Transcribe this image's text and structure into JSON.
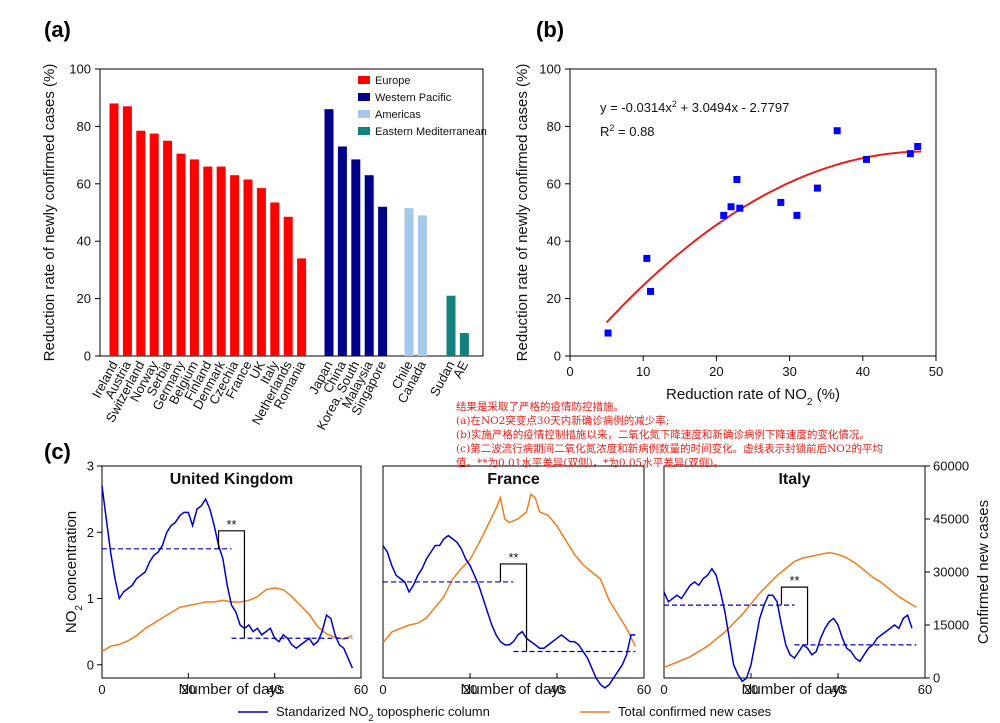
{
  "panel_labels": {
    "a": "(a)",
    "b": "(b)",
    "c": "(c)"
  },
  "annotation": {
    "line1": "结果是采取了严格的疫情防控措施。",
    "line2": "(a)在NO2突变点30天内新确诊病例的减少率;",
    "line3": "(b)实施严格的疫情控制措施以来，二氧化氮下降速度和新确诊病例下降速度的变化情况。",
    "line4": "(c)第二波流行病期间二氧化氮浓度和新病例数量的时间变化。虚线表示封锁前后NO2的平均",
    "line5": "值。**为0.01水平差异(双侧)，*为0.05水平差异(双侧)。"
  },
  "colors": {
    "europe": "#ff0000",
    "western_pacific": "#00008b",
    "americas": "#a6c8ea",
    "eastern_med": "#138080",
    "no2": "#0000cc",
    "cases": "#f07c1c",
    "fit": "#e8201c",
    "scatter": "#0000ff"
  },
  "chart_data": [
    {
      "id": "a",
      "type": "bar",
      "ylabel": "Reduction rate of newly confirmed cases (%)",
      "ylim": [
        0,
        100
      ],
      "yticks": [
        "0",
        "20",
        "40",
        "60",
        "80",
        "100"
      ],
      "legend": [
        "Europe",
        "Western Pacific",
        "Americas",
        "Eastern Mediterranean"
      ],
      "legend_position": "top-right",
      "groups": [
        {
          "name": "Europe",
          "categories": [
            "Ireland",
            "Austria",
            "Switzerland",
            "Norway",
            "Serbia",
            "Germany",
            "Belgium",
            "Finland",
            "Denmark",
            "Czechia",
            "France",
            "UK",
            "Italy",
            "Netherlands",
            "Romania"
          ],
          "values": [
            88,
            87,
            78.5,
            77.5,
            75,
            70.5,
            68.5,
            66,
            66,
            63,
            61.5,
            58.5,
            53.5,
            48.5,
            34
          ]
        },
        {
          "name": "Western Pacific",
          "categories": [
            "Japan",
            "China",
            "Korea, South",
            "Malaysia",
            "Singapore"
          ],
          "values": [
            86,
            73,
            68.5,
            63,
            52
          ]
        },
        {
          "name": "Americas",
          "categories": [
            "Chile",
            "Canada"
          ],
          "values": [
            51.5,
            49
          ]
        },
        {
          "name": "Eastern Mediterranean",
          "categories": [
            "Sudan",
            "AE"
          ],
          "values": [
            21,
            8
          ]
        }
      ]
    },
    {
      "id": "b",
      "type": "scatter",
      "xlabel_main": "Reduction rate of NO",
      "xlabel_sub": "2",
      "xlabel_tail": " (%)",
      "ylabel": "Reduction rate of newly confirmed cases (%)",
      "xlim": [
        0,
        50
      ],
      "ylim": [
        0,
        100
      ],
      "xticks": [
        "0",
        "10",
        "20",
        "30",
        "40",
        "50"
      ],
      "yticks": [
        "0",
        "20",
        "40",
        "60",
        "80",
        "100"
      ],
      "equation": "y = -0.0314x",
      "equation_sup": "2",
      "equation_tail": " + 3.0494x - 2.7797",
      "r2_label": "R",
      "r2_sup": "2",
      "r2_tail": " = 0.88",
      "fit": {
        "a": -0.0314,
        "b": 3.0494,
        "c": -2.7797,
        "xrange": [
          5,
          48
        ]
      },
      "points": [
        {
          "x": 5.2,
          "y": 8
        },
        {
          "x": 10.5,
          "y": 34
        },
        {
          "x": 11,
          "y": 22.5
        },
        {
          "x": 21,
          "y": 49
        },
        {
          "x": 22,
          "y": 52
        },
        {
          "x": 22.8,
          "y": 61.5
        },
        {
          "x": 23.2,
          "y": 51.5
        },
        {
          "x": 28.8,
          "y": 53.5
        },
        {
          "x": 31,
          "y": 49
        },
        {
          "x": 33.8,
          "y": 58.5
        },
        {
          "x": 36.5,
          "y": 78.5
        },
        {
          "x": 40.5,
          "y": 68.5
        },
        {
          "x": 46.5,
          "y": 70.5
        },
        {
          "x": 47.5,
          "y": 73
        }
      ]
    },
    {
      "id": "c",
      "type": "line",
      "ylabel_left_main": "NO",
      "ylabel_left_sub": "2",
      "ylabel_left_tail": " concentration",
      "ylabel_right": "Confirmed new cases",
      "xlabel": "Number of days",
      "xlim": [
        0,
        60
      ],
      "xticks": [
        "0",
        "20",
        "40",
        "60"
      ],
      "ylim_left": [
        -0.2,
        3
      ],
      "yticks_left": [
        "0",
        "1",
        "2",
        "3"
      ],
      "ylim_right": [
        0,
        60000
      ],
      "yticks_right": [
        "0",
        "15000",
        "30000",
        "45000",
        "60000"
      ],
      "legend": [
        "Standarized NO",
        "2",
        " topospheric column",
        "Total confirmed new cases"
      ],
      "subplots": [
        {
          "name": "United Kingdom",
          "significance": "**",
          "means": {
            "before": 1.75,
            "after": 0.4,
            "split": 30
          },
          "no2": {
            "x": [
              0,
              1,
              2,
              3,
              4,
              5,
              6,
              7,
              8,
              9,
              10,
              11,
              12,
              13,
              14,
              15,
              16,
              17,
              18,
              19,
              20,
              21,
              22,
              23,
              24,
              25,
              26,
              27,
              28,
              29,
              30,
              31,
              32,
              33,
              34,
              35,
              36,
              37,
              38,
              39,
              40,
              41,
              42,
              43,
              44,
              45,
              46,
              47,
              48,
              49,
              50,
              51,
              52,
              53,
              54,
              55,
              56,
              57,
              58
            ],
            "values": [
              2.7,
              2.2,
              1.7,
              1.3,
              1.0,
              1.1,
              1.15,
              1.2,
              1.3,
              1.35,
              1.4,
              1.55,
              1.65,
              1.7,
              1.8,
              2.0,
              2.1,
              2.15,
              2.25,
              2.3,
              2.3,
              2.1,
              2.35,
              2.4,
              2.5,
              2.35,
              2.1,
              1.8,
              1.6,
              1.2,
              0.9,
              0.8,
              0.6,
              0.55,
              0.6,
              0.5,
              0.55,
              0.45,
              0.5,
              0.55,
              0.4,
              0.35,
              0.45,
              0.4,
              0.3,
              0.25,
              0.3,
              0.35,
              0.4,
              0.3,
              0.35,
              0.5,
              0.75,
              0.7,
              0.45,
              0.3,
              0.25,
              0.1,
              -0.05
            ]
          },
          "cases": {
            "x": [
              0,
              2,
              4,
              6,
              8,
              10,
              12,
              14,
              16,
              18,
              20,
              22,
              24,
              26,
              28,
              30,
              32,
              34,
              36,
              38,
              40,
              42,
              44,
              46,
              48,
              50,
              52,
              54,
              56,
              58
            ],
            "values": [
              7500,
              9000,
              9500,
              10500,
              12000,
              14000,
              15500,
              17000,
              18500,
              20000,
              20500,
              21000,
              21500,
              21500,
              22000,
              21500,
              21500,
              22000,
              23000,
              25000,
              25500,
              25000,
              23000,
              20500,
              18000,
              14500,
              12500,
              11500,
              11000,
              12000
            ]
          }
        },
        {
          "name": "France",
          "significance": "**",
          "means": {
            "before": 1.25,
            "after": 0.2,
            "split": 30
          },
          "no2": {
            "x": [
              0,
              1,
              2,
              3,
              4,
              5,
              6,
              7,
              8,
              9,
              10,
              11,
              12,
              13,
              14,
              15,
              16,
              17,
              18,
              19,
              20,
              21,
              22,
              23,
              24,
              25,
              26,
              27,
              28,
              29,
              30,
              31,
              32,
              33,
              34,
              35,
              36,
              37,
              38,
              39,
              40,
              41,
              42,
              43,
              44,
              45,
              46,
              47,
              48,
              49,
              50,
              51,
              52,
              53,
              54,
              55,
              56,
              57,
              58
            ],
            "values": [
              1.8,
              1.7,
              1.5,
              1.35,
              1.3,
              1.25,
              1.1,
              1.2,
              1.35,
              1.45,
              1.6,
              1.7,
              1.8,
              1.8,
              1.9,
              1.95,
              1.9,
              1.85,
              1.75,
              1.6,
              1.5,
              1.35,
              1.2,
              1.0,
              0.8,
              0.6,
              0.45,
              0.35,
              0.3,
              0.3,
              0.35,
              0.45,
              0.5,
              0.4,
              0.35,
              0.3,
              0.25,
              0.25,
              0.3,
              0.35,
              0.4,
              0.45,
              0.4,
              0.35,
              0.35,
              0.3,
              0.2,
              0.1,
              -0.05,
              -0.2,
              -0.3,
              -0.35,
              -0.3,
              -0.2,
              -0.1,
              0.0,
              0.15,
              0.45,
              0.45
            ]
          },
          "cases": {
            "x": [
              0,
              2,
              4,
              6,
              8,
              10,
              12,
              14,
              16,
              18,
              20,
              22,
              24,
              26,
              27,
              28,
              29,
              30,
              31,
              32,
              33,
              34,
              35,
              36,
              38,
              40,
              42,
              44,
              46,
              48,
              50,
              52,
              54,
              56,
              58
            ],
            "values": [
              10000,
              13000,
              14000,
              15000,
              15500,
              17000,
              20000,
              23000,
              28000,
              31000,
              33500,
              38000,
              43000,
              48000,
              51000,
              45000,
              44000,
              44500,
              45000,
              46000,
              47000,
              52000,
              51000,
              47000,
              46000,
              43000,
              39000,
              35000,
              32000,
              30000,
              28000,
              22000,
              18000,
              14000,
              9000
            ]
          }
        },
        {
          "name": "Italy",
          "significance": "**",
          "means": {
            "before": 0.9,
            "after": 0.3,
            "split": 30
          },
          "no2": {
            "x": [
              0,
              1,
              2,
              3,
              4,
              5,
              6,
              7,
              8,
              9,
              10,
              11,
              12,
              13,
              14,
              15,
              16,
              17,
              18,
              19,
              20,
              21,
              22,
              23,
              24,
              25,
              26,
              27,
              28,
              29,
              30,
              31,
              32,
              33,
              34,
              35,
              36,
              37,
              38,
              39,
              40,
              41,
              42,
              43,
              44,
              45,
              46,
              47,
              48,
              49,
              50,
              51,
              52,
              53,
              54,
              55,
              56,
              57
            ],
            "values": [
              1.1,
              0.95,
              1.0,
              1.05,
              1.0,
              1.1,
              1.2,
              1.25,
              1.2,
              1.3,
              1.35,
              1.45,
              1.35,
              1.1,
              0.8,
              0.4,
              0.0,
              -0.15,
              -0.25,
              -0.2,
              0.0,
              0.35,
              0.7,
              0.9,
              1.05,
              1.05,
              0.95,
              0.6,
              0.3,
              0.15,
              0.1,
              0.2,
              0.3,
              0.25,
              0.15,
              0.2,
              0.4,
              0.55,
              0.65,
              0.7,
              0.6,
              0.4,
              0.25,
              0.2,
              0.1,
              0.05,
              0.15,
              0.25,
              0.3,
              0.4,
              0.45,
              0.5,
              0.55,
              0.6,
              0.55,
              0.7,
              0.75,
              0.55
            ]
          },
          "cases": {
            "x": [
              0,
              2,
              4,
              6,
              8,
              10,
              12,
              14,
              16,
              18,
              20,
              22,
              24,
              26,
              28,
              30,
              32,
              34,
              36,
              38,
              40,
              42,
              44,
              46,
              48,
              50,
              52,
              54,
              56,
              58
            ],
            "values": [
              3000,
              4000,
              5000,
              6000,
              7500,
              9000,
              11000,
              13000,
              15500,
              18000,
              21000,
              24000,
              26500,
              29000,
              31000,
              33000,
              34000,
              34500,
              35000,
              35500,
              35000,
              34000,
              32500,
              30500,
              28500,
              27000,
              25000,
              23000,
              21500,
              20000
            ]
          }
        }
      ]
    }
  ]
}
